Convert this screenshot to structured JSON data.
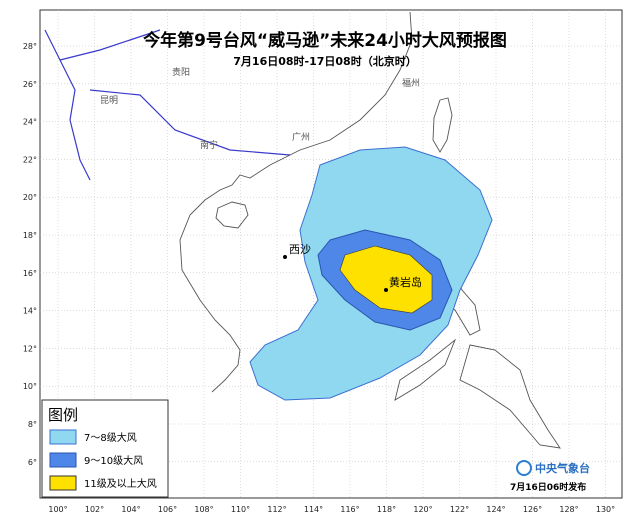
{
  "title": "今年第9号台风“威马逊”未来24小时大风预报图",
  "subtitle": "7月16日08时-17日08时（北京时）",
  "places": [
    "贵阳",
    "昆明",
    "南宁",
    "广州",
    "福州",
    "西沙",
    "黄岩岛"
  ],
  "lat_labels": [
    "28°",
    "26°",
    "24°",
    "22°",
    "20°",
    "18°",
    "16°",
    "14°",
    "12°",
    "10°",
    "8°",
    "6°"
  ],
  "lon_labels": [
    "100°",
    "102°",
    "104°",
    "106°",
    "108°",
    "110°",
    "112°",
    "114°",
    "116°",
    "118°",
    "120°",
    "122°",
    "124°",
    "126°",
    "128°",
    "130°"
  ],
  "legend": {
    "title": "图例",
    "items": [
      "7～8级大风",
      "9～10级大风",
      "11级及以上大风"
    ]
  },
  "footer": {
    "agency": "中央气象台",
    "issued": "7月16日06时发布"
  }
}
